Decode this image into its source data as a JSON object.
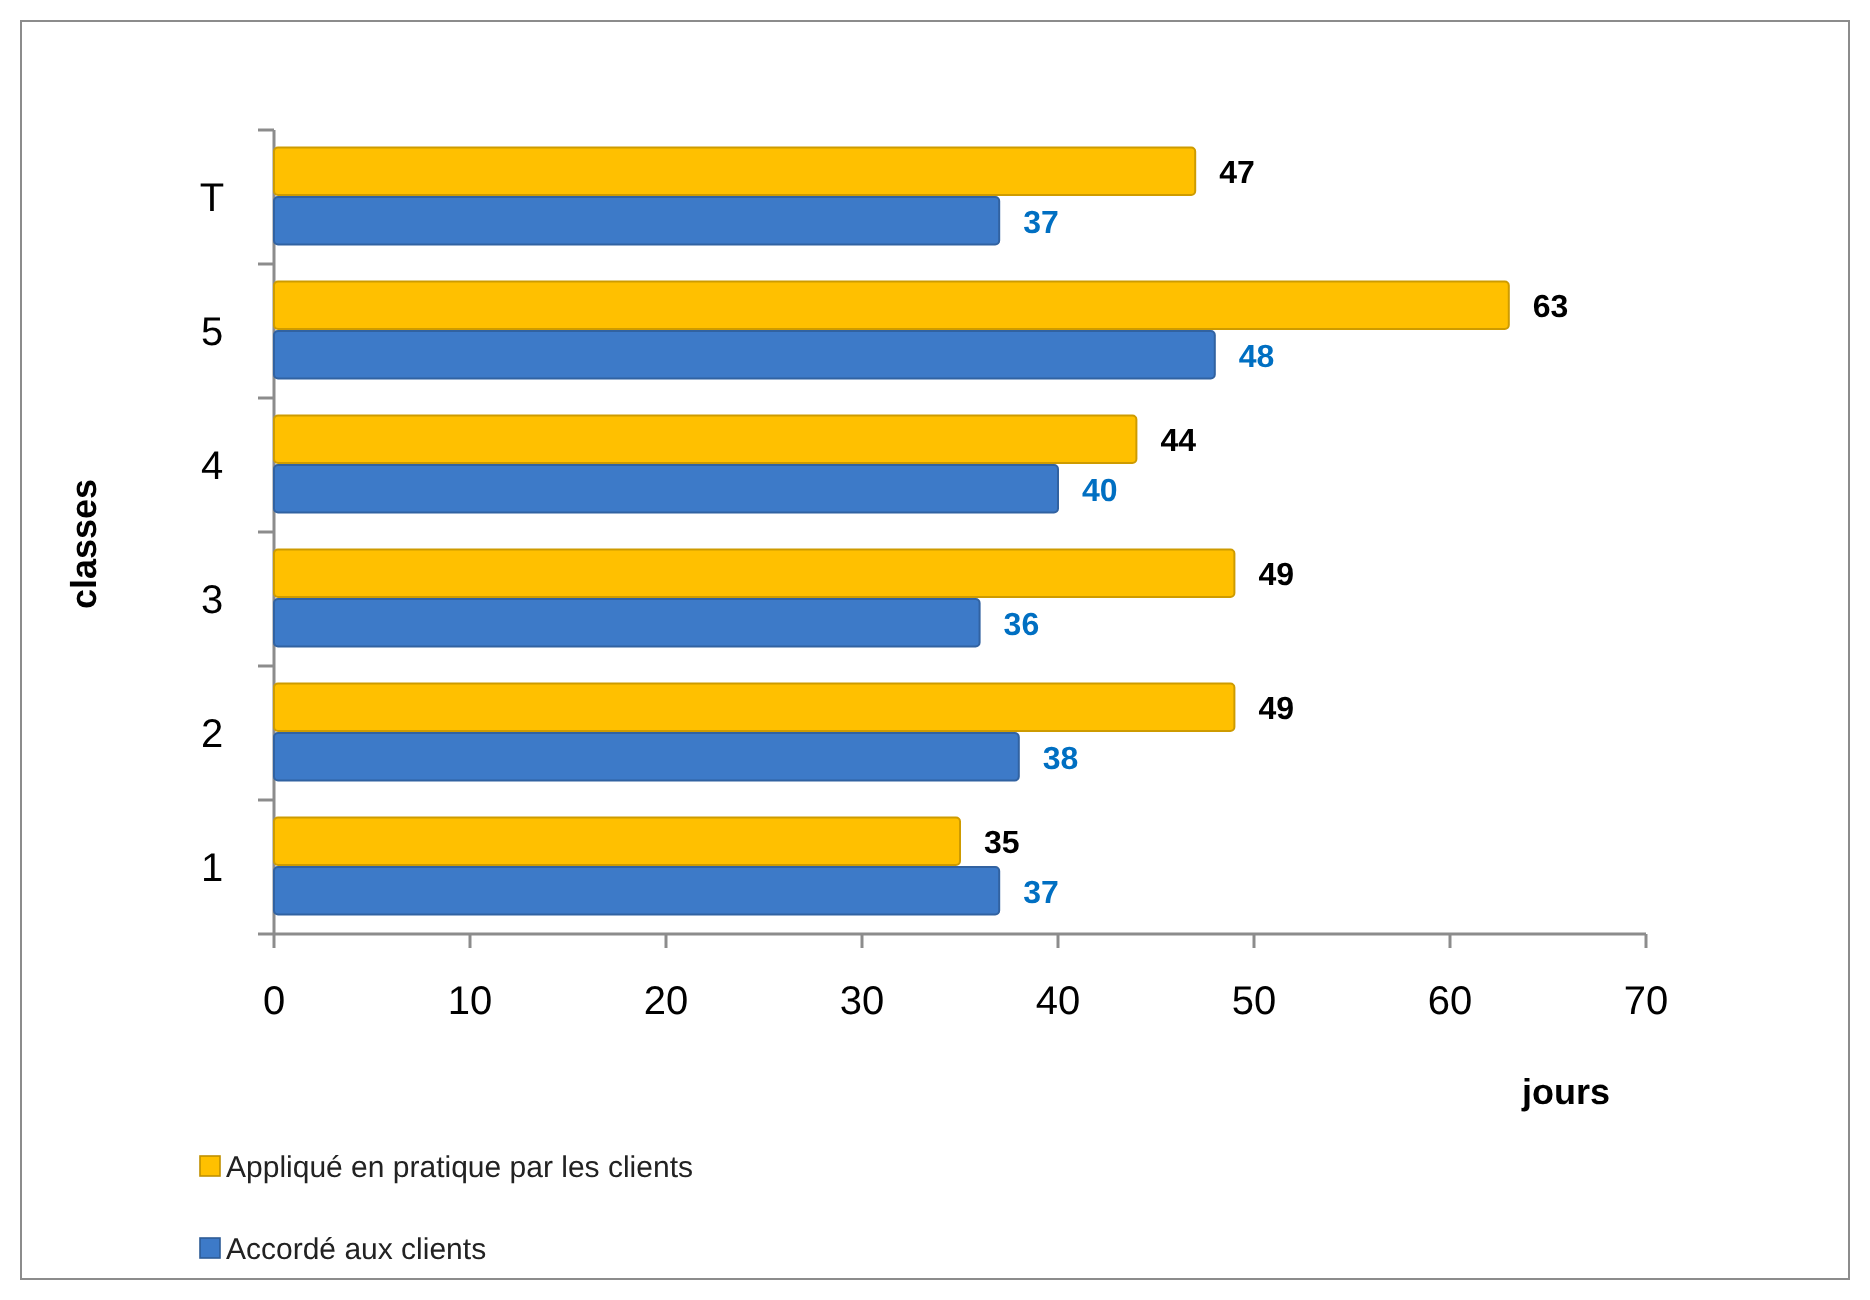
{
  "chart_data": {
    "type": "bar",
    "orientation": "horizontal",
    "categories": [
      "T",
      "5",
      "4",
      "3",
      "2",
      "1"
    ],
    "series": [
      {
        "name": "Appliqué en pratique par les clients",
        "color": "#ffc000",
        "values": [
          47,
          63,
          44,
          49,
          49,
          35
        ]
      },
      {
        "name": "Accordé aux clients",
        "color": "#3d7ac8",
        "values": [
          37,
          48,
          40,
          36,
          38,
          37
        ]
      }
    ],
    "xlim": [
      0,
      70
    ],
    "xticks": [
      0,
      10,
      20,
      30,
      40,
      50,
      60,
      70
    ],
    "xlabel": "jours",
    "ylabel": "classes",
    "data_labels": true,
    "legend": "bottom"
  }
}
